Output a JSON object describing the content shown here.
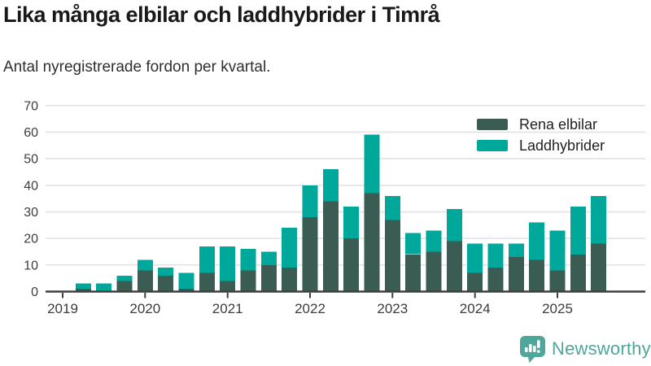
{
  "header": {
    "title": "Lika många elbilar och laddhybrider i Timrå",
    "subtitle": "Antal nyregistrerade fordon per kvartal."
  },
  "legend": {
    "items": [
      {
        "label": "Rena elbilar",
        "color": "#3a5c52"
      },
      {
        "label": "Laddhybrider",
        "color": "#00a79b"
      }
    ]
  },
  "chart_data": {
    "type": "bar",
    "stacked": true,
    "title": "Lika många elbilar och laddhybrider i Timrå",
    "subtitle": "Antal nyregistrerade fordon per kvartal.",
    "xlabel": "",
    "ylabel": "",
    "ylim": [
      0,
      70
    ],
    "yticks": [
      0,
      10,
      20,
      30,
      40,
      50,
      60,
      70
    ],
    "xticks": [
      "2019",
      "2020",
      "2021",
      "2022",
      "2023",
      "2024",
      "2025"
    ],
    "grid": true,
    "legend_position": "top-right",
    "categories": [
      "2019 Q1",
      "2019 Q2",
      "2019 Q3",
      "2019 Q4",
      "2020 Q1",
      "2020 Q2",
      "2020 Q3",
      "2020 Q4",
      "2021 Q1",
      "2021 Q2",
      "2021 Q3",
      "2021 Q4",
      "2022 Q1",
      "2022 Q2",
      "2022 Q3",
      "2022 Q4",
      "2023 Q1",
      "2023 Q2",
      "2023 Q3",
      "2023 Q4",
      "2024 Q1",
      "2024 Q2",
      "2024 Q3",
      "2024 Q4",
      "2025 Q1",
      "2025 Q2",
      "2025 Q3"
    ],
    "series": [
      {
        "name": "Rena elbilar",
        "color": "#3a5c52",
        "values": [
          0,
          1,
          0,
          4,
          8,
          6,
          1,
          7,
          4,
          8,
          10,
          9,
          28,
          34,
          20,
          37,
          27,
          14,
          15,
          19,
          7,
          9,
          13,
          12,
          8,
          14,
          18
        ]
      },
      {
        "name": "Laddhybrider",
        "color": "#00a79b",
        "values": [
          0,
          2,
          3,
          2,
          4,
          3,
          6,
          10,
          13,
          8,
          5,
          15,
          12,
          12,
          12,
          22,
          9,
          8,
          8,
          12,
          11,
          9,
          5,
          14,
          15,
          18,
          18
        ]
      }
    ],
    "totals": [
      0,
      3,
      3,
      6,
      12,
      9,
      7,
      17,
      17,
      16,
      15,
      24,
      40,
      46,
      32,
      59,
      36,
      22,
      23,
      31,
      18,
      18,
      18,
      26,
      23,
      32,
      36
    ]
  },
  "axis_style": {
    "grid_color": "#e4e4e4",
    "axis_color": "#3e3e3e",
    "tick_label_color": "#3c3c3c"
  },
  "footer": {
    "brand": "Newsworthy",
    "brand_color": "#4ea79a"
  }
}
